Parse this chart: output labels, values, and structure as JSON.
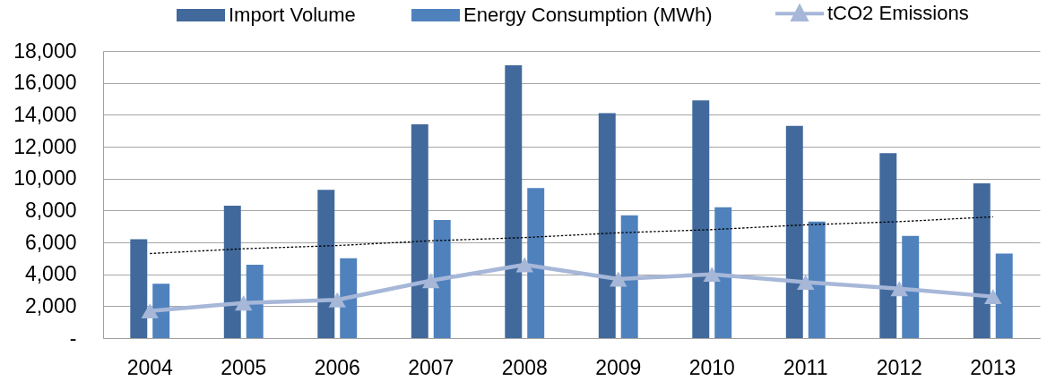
{
  "chart_data": {
    "type": "bar",
    "categories": [
      "2004",
      "2005",
      "2006",
      "2007",
      "2008",
      "2009",
      "2010",
      "2011",
      "2012",
      "2013"
    ],
    "series": [
      {
        "name": "Import Volume",
        "color": "#41699c",
        "values": [
          6200,
          8300,
          9300,
          13400,
          17100,
          14100,
          14900,
          13300,
          11600,
          9700
        ]
      },
      {
        "name": "Energy Consumption (MWh)",
        "color": "#4f81bd",
        "values": [
          3400,
          4600,
          5000,
          7400,
          9400,
          7700,
          8200,
          7300,
          6400,
          5300
        ]
      },
      {
        "name": "tCO2 Emissions",
        "type": "line",
        "color": "#a6b7d8",
        "marker": "triangle",
        "values": [
          1700,
          2200,
          2400,
          3600,
          4600,
          3700,
          4000,
          3500,
          3100,
          2600
        ]
      },
      {
        "type": "line",
        "color": "#000000",
        "line_style": "dotted",
        "values": [
          5300,
          5600,
          5800,
          6100,
          6300,
          6600,
          6800,
          7100,
          7300,
          7600
        ]
      }
    ],
    "ylim": [
      0,
      18000
    ],
    "yticks": [
      {
        "value": 0,
        "label": "-"
      },
      {
        "value": 2000,
        "label": "2,000"
      },
      {
        "value": 4000,
        "label": "4,000"
      },
      {
        "value": 6000,
        "label": "6,000"
      },
      {
        "value": 8000,
        "label": "8,000"
      },
      {
        "value": 10000,
        "label": "10,000"
      },
      {
        "value": 12000,
        "label": "12,000"
      },
      {
        "value": 14000,
        "label": "14,000"
      },
      {
        "value": 16000,
        "label": "16,000"
      },
      {
        "value": 18000,
        "label": "18,000"
      }
    ],
    "grid": "y",
    "legend": "top"
  }
}
